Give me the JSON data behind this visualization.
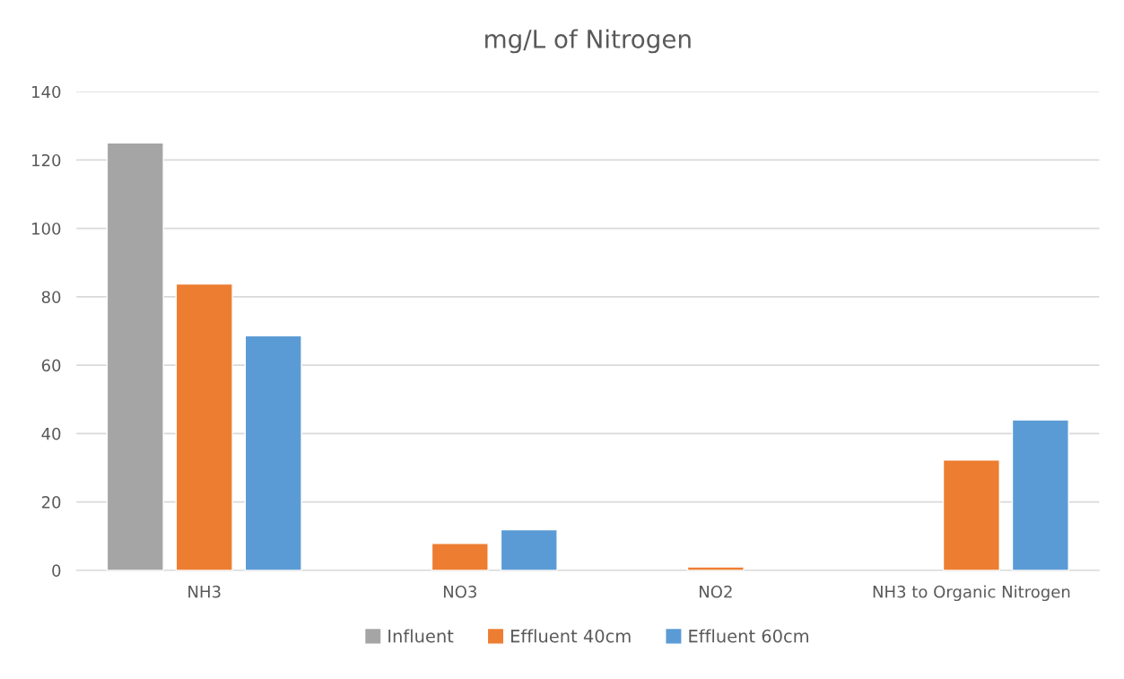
{
  "chart_data": {
    "type": "bar",
    "title": "mg/L of Nitrogen",
    "categories": [
      "NH3",
      "NO3",
      "NO2",
      "NH3 to Organic Nitrogen"
    ],
    "series": [
      {
        "name": "Influent",
        "color": "#a5a5a5",
        "values": [
          125,
          null,
          null,
          null
        ]
      },
      {
        "name": "Effluent 40cm",
        "color": "#ed7d31",
        "values": [
          83.8,
          7.9,
          1.0,
          32.3
        ]
      },
      {
        "name": "Effluent 60cm",
        "color": "#5b9bd5",
        "values": [
          68.6,
          11.9,
          null,
          44.0
        ]
      }
    ],
    "ylim": [
      0,
      140
    ],
    "yticks": [
      0,
      20,
      40,
      60,
      80,
      100,
      120,
      140
    ],
    "grid": "y",
    "legend": "bottom"
  }
}
